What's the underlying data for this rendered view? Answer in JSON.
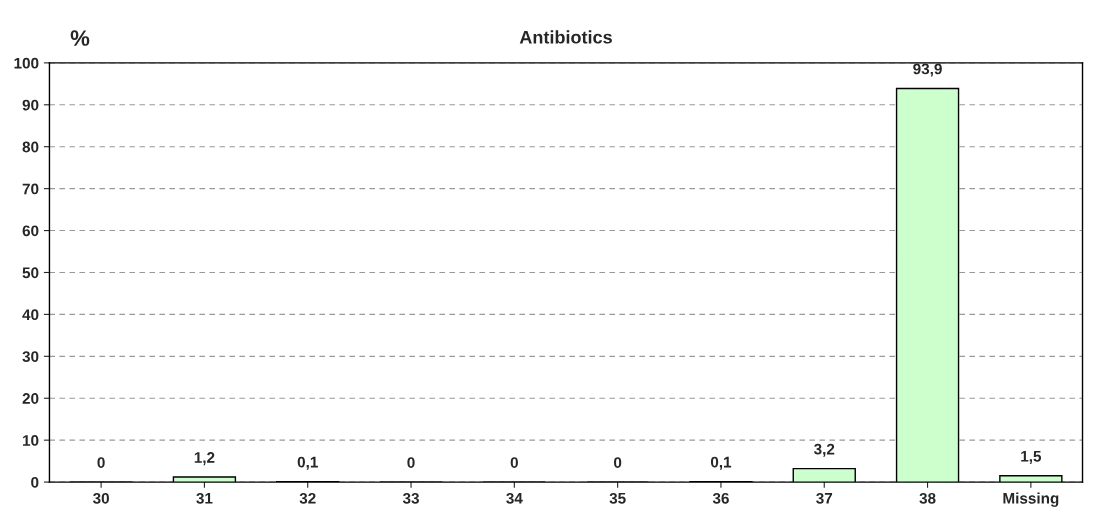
{
  "chart_data": {
    "type": "bar",
    "title": "Antibiotics",
    "ylabel": "%",
    "categories": [
      "30",
      "31",
      "32",
      "33",
      "34",
      "35",
      "36",
      "37",
      "38",
      "Missing"
    ],
    "values": [
      0,
      1.2,
      0.1,
      0,
      0,
      0,
      0.1,
      3.2,
      93.9,
      1.5
    ],
    "value_labels": [
      "0",
      "1,2",
      "0,1",
      "0",
      "0",
      "0",
      "0,1",
      "3,2",
      "93,9",
      "1,5"
    ],
    "color": "#ccffcc",
    "ylim": [
      0,
      100
    ],
    "yticks": [
      0,
      10,
      20,
      30,
      40,
      50,
      60,
      70,
      80,
      90,
      100
    ],
    "grid": "y"
  }
}
